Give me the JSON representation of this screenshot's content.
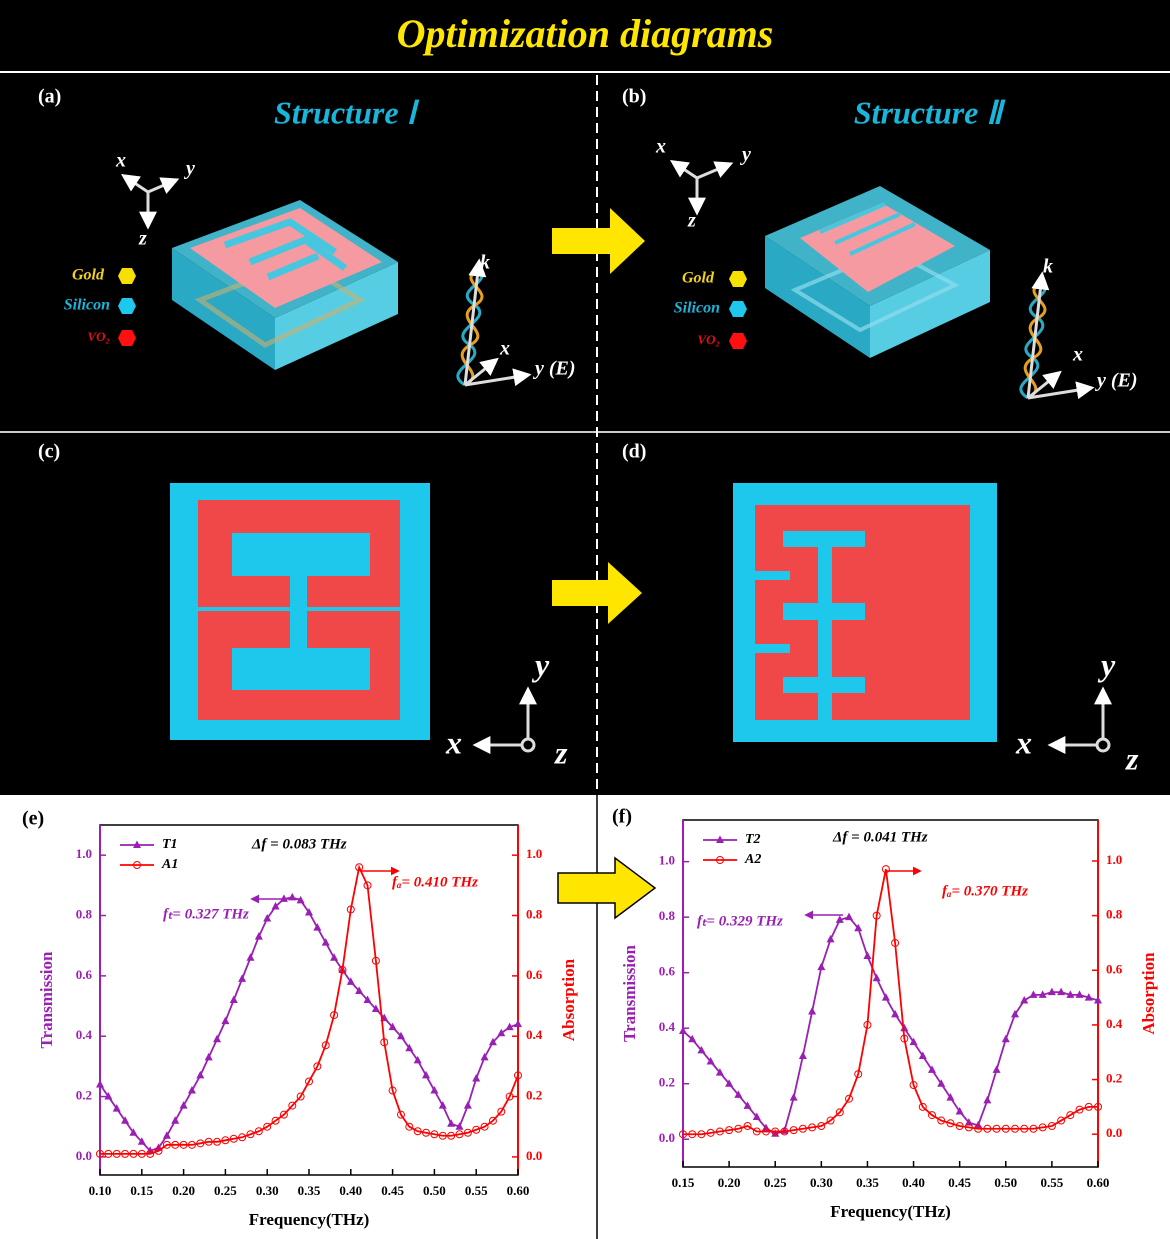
{
  "header": {
    "title": "Optimization diagrams"
  },
  "panels": {
    "a": {
      "label": "(a)",
      "title": "Structure Ⅰ",
      "legend": [
        "Gold",
        "Silicon",
        "VO₂"
      ],
      "axes": [
        "x",
        "y",
        "z"
      ],
      "wave_axes": [
        "k",
        "x",
        "y (E)"
      ]
    },
    "b": {
      "label": "(b)",
      "title": "Structure Ⅱ",
      "legend": [
        "Gold",
        "Silicon",
        "VO₂"
      ],
      "axes": [
        "x",
        "y",
        "z"
      ],
      "wave_axes": [
        "k",
        "x",
        "y (E)"
      ]
    },
    "c": {
      "label": "(c)",
      "axes": [
        "x",
        "y",
        "z"
      ]
    },
    "d": {
      "label": "(d)",
      "axes": [
        "x",
        "y",
        "z"
      ]
    }
  },
  "chart_data": [
    {
      "type": "line",
      "label": "(e)",
      "xlabel": "Frequency(THz)",
      "ylabel": "Transmission",
      "y2label": "Absorption",
      "annotations": [
        "Δf = 0.083 THz",
        "fₜ= 0.327 THz",
        "fₐ= 0.410 THz"
      ],
      "legend": "upper left",
      "x": [
        0.1,
        0.11,
        0.12,
        0.13,
        0.14,
        0.15,
        0.16,
        0.17,
        0.18,
        0.19,
        0.2,
        0.21,
        0.22,
        0.23,
        0.24,
        0.25,
        0.26,
        0.27,
        0.28,
        0.29,
        0.3,
        0.31,
        0.32,
        0.33,
        0.34,
        0.35,
        0.36,
        0.37,
        0.38,
        0.39,
        0.4,
        0.41,
        0.42,
        0.43,
        0.44,
        0.45,
        0.46,
        0.47,
        0.48,
        0.49,
        0.5,
        0.51,
        0.52,
        0.53,
        0.54,
        0.55,
        0.56,
        0.57,
        0.58,
        0.59,
        0.6
      ],
      "xlim": [
        0.1,
        0.6
      ],
      "xticks": [
        {
          "value": 0.1,
          "label": "0.10"
        },
        0.15,
        {
          "value": 0.2,
          "label": "0.20"
        },
        0.25,
        {
          "value": 0.3,
          "label": "0.30"
        },
        0.35,
        {
          "value": 0.4,
          "label": "0.40"
        },
        0.45,
        {
          "value": 0.5,
          "label": "0.50"
        },
        0.55,
        {
          "value": 0.6,
          "label": "0.60"
        }
      ],
      "ylim": [
        -0.06,
        1.1
      ],
      "yticks": [
        {
          "value": 0,
          "label": "0.0"
        },
        0.2,
        0.4,
        0.6,
        0.8,
        {
          "value": 1,
          "label": "1.0"
        }
      ],
      "y2lim": [
        -0.06,
        1.1
      ],
      "y2ticks": [
        {
          "value": 0,
          "label": "0.0"
        },
        0.2,
        0.4,
        0.6,
        0.8,
        {
          "value": 1,
          "label": "1.0"
        }
      ],
      "series": [
        {
          "name": "T1",
          "color": "#9a1fb3",
          "marker": "triangle",
          "values": [
            0.24,
            0.2,
            0.16,
            0.12,
            0.08,
            0.05,
            0.02,
            0.03,
            0.07,
            0.12,
            0.17,
            0.22,
            0.27,
            0.33,
            0.39,
            0.45,
            0.52,
            0.59,
            0.66,
            0.73,
            0.79,
            0.83,
            0.855,
            0.86,
            0.85,
            0.81,
            0.76,
            0.71,
            0.66,
            0.62,
            0.58,
            0.55,
            0.52,
            0.49,
            0.46,
            0.43,
            0.4,
            0.36,
            0.32,
            0.27,
            0.22,
            0.17,
            0.11,
            0.1,
            0.17,
            0.26,
            0.33,
            0.38,
            0.41,
            0.43,
            0.44
          ]
        },
        {
          "name": "A1",
          "color": "#ff0000",
          "marker": "circle",
          "axis": "y2",
          "values": [
            0.01,
            0.01,
            0.01,
            0.01,
            0.01,
            0.01,
            0.01,
            0.02,
            0.04,
            0.04,
            0.04,
            0.04,
            0.045,
            0.05,
            0.05,
            0.055,
            0.06,
            0.065,
            0.075,
            0.085,
            0.1,
            0.12,
            0.14,
            0.17,
            0.2,
            0.25,
            0.3,
            0.37,
            0.47,
            0.62,
            0.82,
            0.96,
            0.9,
            0.65,
            0.38,
            0.22,
            0.14,
            0.1,
            0.085,
            0.08,
            0.075,
            0.07,
            0.07,
            0.075,
            0.08,
            0.09,
            0.1,
            0.12,
            0.15,
            0.2,
            0.27
          ]
        }
      ]
    },
    {
      "type": "line",
      "label": "(f)",
      "xlabel": "Frequency(THz)",
      "ylabel": "Transmission",
      "y2label": "Absorption",
      "annotations": [
        "Δf = 0.041 THz",
        "fₜ= 0.329 THz",
        "fₐ= 0.370 THz"
      ],
      "legend": "upper left",
      "x": [
        0.15,
        0.16,
        0.17,
        0.18,
        0.19,
        0.2,
        0.21,
        0.22,
        0.23,
        0.24,
        0.25,
        0.26,
        0.27,
        0.28,
        0.29,
        0.3,
        0.31,
        0.32,
        0.33,
        0.34,
        0.35,
        0.36,
        0.37,
        0.38,
        0.39,
        0.4,
        0.41,
        0.42,
        0.43,
        0.44,
        0.45,
        0.46,
        0.47,
        0.48,
        0.49,
        0.5,
        0.51,
        0.52,
        0.53,
        0.54,
        0.55,
        0.56,
        0.57,
        0.58,
        0.59,
        0.6
      ],
      "xlim": [
        0.15,
        0.6
      ],
      "xticks": [
        0.15,
        {
          "value": 0.2,
          "label": "0.20"
        },
        0.25,
        {
          "value": 0.3,
          "label": "0.30"
        },
        0.35,
        {
          "value": 0.4,
          "label": "0.40"
        },
        0.45,
        {
          "value": 0.5,
          "label": "0.50"
        },
        0.55,
        {
          "value": 0.6,
          "label": "0.60"
        }
      ],
      "ylim": [
        -0.1,
        1.15
      ],
      "yticks": [
        {
          "value": 0,
          "label": "0.0"
        },
        0.2,
        0.4,
        0.6,
        0.8,
        {
          "value": 1,
          "label": "1.0"
        }
      ],
      "y2lim": [
        -0.12,
        1.15
      ],
      "y2ticks": [
        {
          "value": 0,
          "label": "0.0"
        },
        0.2,
        0.4,
        0.6,
        0.8,
        {
          "value": 1,
          "label": "1.0"
        }
      ],
      "series": [
        {
          "name": "T2",
          "color": "#9a1fb3",
          "marker": "triangle",
          "values": [
            0.39,
            0.36,
            0.32,
            0.28,
            0.24,
            0.2,
            0.16,
            0.12,
            0.08,
            0.04,
            0.02,
            0.03,
            0.15,
            0.3,
            0.46,
            0.62,
            0.72,
            0.79,
            0.8,
            0.76,
            0.66,
            0.58,
            0.51,
            0.45,
            0.4,
            0.35,
            0.3,
            0.25,
            0.2,
            0.15,
            0.1,
            0.06,
            0.05,
            0.14,
            0.25,
            0.36,
            0.45,
            0.5,
            0.52,
            0.52,
            0.53,
            0.53,
            0.52,
            0.52,
            0.51,
            0.5
          ]
        },
        {
          "name": "A2",
          "color": "#ff0000",
          "marker": "circle",
          "axis": "y2",
          "values": [
            0,
            0,
            0,
            0.005,
            0.01,
            0.015,
            0.02,
            0.03,
            0.01,
            0.01,
            0.01,
            0.01,
            0.015,
            0.02,
            0.025,
            0.03,
            0.05,
            0.08,
            0.13,
            0.22,
            0.4,
            0.8,
            0.97,
            0.7,
            0.35,
            0.18,
            0.1,
            0.07,
            0.05,
            0.04,
            0.03,
            0.025,
            0.02,
            0.02,
            0.02,
            0.02,
            0.02,
            0.02,
            0.02,
            0.025,
            0.03,
            0.05,
            0.07,
            0.09,
            0.1,
            0.1
          ]
        }
      ]
    }
  ]
}
